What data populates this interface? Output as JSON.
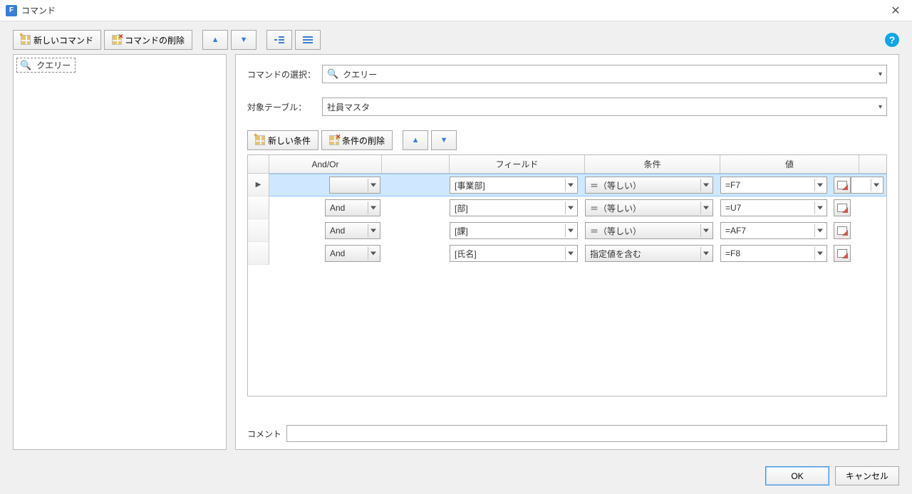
{
  "title": "コマンド",
  "toolbar": {
    "new_command": "新しいコマンド",
    "delete_command": "コマンドの削除"
  },
  "tree": {
    "item1": "クエリー"
  },
  "detail": {
    "command_select_label": "コマンドの選択：",
    "command_select_value": "クエリー",
    "target_table_label": "対象テーブル：",
    "target_table_value": "社員マスタ",
    "new_condition": "新しい条件",
    "delete_condition": "条件の削除",
    "headers": {
      "andor": "And/Or",
      "field": "フィールド",
      "condition": "条件",
      "value": "値"
    },
    "rows": [
      {
        "selected": true,
        "andor": "",
        "field": "[事業部]",
        "cond": "＝（等しい）",
        "value": "=F7"
      },
      {
        "selected": false,
        "andor": "And",
        "field": "[部]",
        "cond": "＝（等しい）",
        "value": "=U7"
      },
      {
        "selected": false,
        "andor": "And",
        "field": "[課]",
        "cond": "＝（等しい）",
        "value": "=AF7"
      },
      {
        "selected": false,
        "andor": "And",
        "field": "[氏名]",
        "cond": "指定値を含む",
        "value": "=F8"
      }
    ],
    "comment_label": "コメント",
    "comment_value": ""
  },
  "footer": {
    "ok": "OK",
    "cancel": "キャンセル"
  }
}
